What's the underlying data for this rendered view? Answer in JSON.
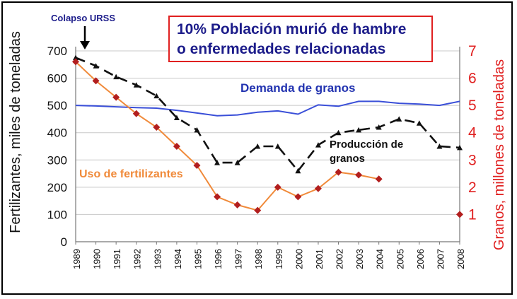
{
  "chart_data": {
    "type": "line",
    "title": "",
    "years": [
      "1989",
      "1990",
      "1991",
      "1992",
      "1993",
      "1994",
      "1995",
      "1996",
      "1997",
      "1998",
      "1999",
      "2000",
      "2001",
      "2002",
      "2003",
      "2004",
      "2005",
      "2006",
      "2007",
      "2008"
    ],
    "ylabel_left": "Fertilizantes, miles de toneladas",
    "ylabel_right": "Granos, millones de toneladas",
    "ylim_left": [
      0,
      700
    ],
    "yticks_left": [
      0,
      100,
      200,
      300,
      400,
      500,
      600,
      700
    ],
    "ylim_right": [
      0,
      7
    ],
    "yticks_right": [
      1,
      2,
      3,
      4,
      5,
      6,
      7
    ],
    "grid": true,
    "series": [
      {
        "name": "Demanda de granos",
        "axis": "right",
        "color": "#3a4fd8",
        "style": "solid",
        "x": [
          "1989",
          "1990",
          "1991",
          "1992",
          "1993",
          "1994",
          "1995",
          "1996",
          "1997",
          "1998",
          "1999",
          "2000",
          "2001",
          "2002",
          "2003",
          "2004",
          "2005",
          "2006",
          "2007",
          "2008"
        ],
        "values": [
          5.0,
          4.98,
          4.95,
          4.92,
          4.9,
          4.82,
          4.72,
          4.62,
          4.65,
          4.75,
          4.8,
          4.68,
          5.02,
          4.97,
          5.15,
          5.15,
          5.08,
          5.05,
          5.0,
          5.15
        ]
      },
      {
        "name": "Producción de granos",
        "axis": "right",
        "color": "#111111",
        "style": "dashed",
        "x": [
          "1989",
          "1990",
          "1991",
          "1992",
          "1993",
          "1994",
          "1995",
          "1996",
          "1997",
          "1998",
          "1999",
          "2000",
          "2001",
          "2002",
          "2003",
          "2004",
          "2005",
          "2006",
          "2007",
          "2008"
        ],
        "values": [
          6.75,
          6.45,
          6.05,
          5.75,
          5.35,
          4.55,
          4.1,
          2.9,
          2.9,
          3.5,
          3.5,
          2.6,
          3.55,
          4.0,
          4.1,
          4.2,
          4.5,
          4.35,
          3.5,
          3.45
        ]
      },
      {
        "name": "Uso de fertilizantes",
        "axis": "left",
        "color": "#f08a3a",
        "marker_color": "#b21e1e",
        "style": "solid",
        "x": [
          "1989",
          "1990",
          "1991",
          "1992",
          "1993",
          "1994",
          "1995",
          "1996",
          "1997",
          "1998",
          "1999",
          "2000",
          "2001",
          "2002",
          "2003",
          "2004",
          "2008"
        ],
        "values": [
          660,
          590,
          530,
          470,
          420,
          350,
          280,
          165,
          135,
          115,
          200,
          165,
          195,
          255,
          245,
          230,
          100
        ]
      }
    ],
    "annotations": {
      "collapse": "Colapso URSS",
      "box_line1": "10% Población murió de hambre",
      "box_line2": "o enfermedades relacionadas",
      "demand_label": "Demanda de granos",
      "production_label_1": "Producción de",
      "production_label_2": "granos",
      "fertilizer_label": "Uso de fertilizantes"
    }
  }
}
